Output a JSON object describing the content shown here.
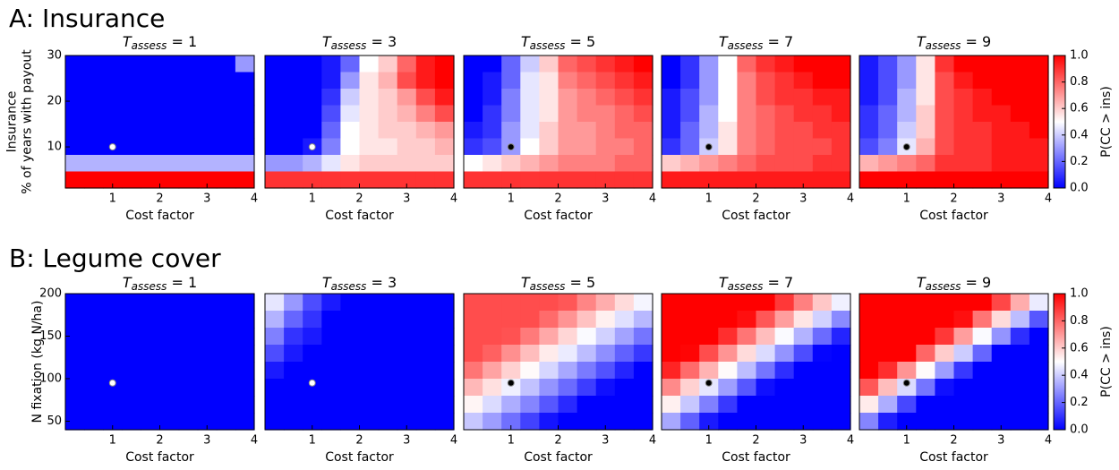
{
  "panel_labels": [
    "A: Insurance",
    "B: Legume cover"
  ],
  "colorbar": {
    "label": "P(CC > ins)",
    "lim": [
      0,
      1
    ],
    "cmap": [
      "#0000ff",
      "#ffffff",
      "#ff0000"
    ],
    "ticks": [
      {
        "value": 0,
        "label": "0.0"
      },
      {
        "value": 0.2,
        "label": "0.2"
      },
      {
        "value": 0.4,
        "label": "0.4"
      },
      {
        "value": 0.6,
        "label": "0.6"
      },
      {
        "value": 0.8,
        "label": "0.8"
      },
      {
        "value": 1,
        "label": "1.0"
      }
    ]
  },
  "chart_data": [
    {
      "type": "heatmap",
      "title": [
        "T",
        "assess",
        " = 1"
      ],
      "xlabel": "Cost factor",
      "ylabel": [
        "Insurance",
        "% of years with payout"
      ],
      "xlim": [
        0,
        4
      ],
      "xticks": [
        1,
        2,
        3,
        4
      ],
      "ylim": [
        1,
        30
      ],
      "yticks": [
        10,
        20,
        30
      ],
      "point": {
        "x": 1,
        "y": 10,
        "color": "#ffffff"
      },
      "values": [
        [
          0,
          0,
          0,
          0,
          0,
          0,
          0,
          0,
          0,
          0.3
        ],
        [
          0,
          0,
          0,
          0,
          0,
          0,
          0,
          0,
          0,
          0
        ],
        [
          0,
          0,
          0,
          0,
          0,
          0,
          0,
          0,
          0,
          0
        ],
        [
          0,
          0,
          0,
          0,
          0,
          0,
          0,
          0,
          0,
          0
        ],
        [
          0,
          0,
          0,
          0,
          0,
          0,
          0,
          0,
          0,
          0
        ],
        [
          0,
          0,
          0,
          0,
          0,
          0,
          0,
          0,
          0,
          0
        ],
        [
          0.35,
          0.35,
          0.35,
          0.35,
          0.35,
          0.35,
          0.35,
          0.35,
          0.35,
          0.35
        ],
        [
          1,
          1,
          1,
          1,
          1,
          1,
          1,
          1,
          1,
          1
        ]
      ]
    },
    {
      "type": "heatmap",
      "title": [
        "T",
        "assess",
        " = 3"
      ],
      "xlabel": "Cost factor",
      "xlim": [
        0,
        4
      ],
      "xticks": [
        1,
        2,
        3,
        4
      ],
      "ylim": [
        1,
        30
      ],
      "point": {
        "x": 1,
        "y": 10,
        "color": "#ffffff"
      },
      "values": [
        [
          0,
          0,
          0,
          0.05,
          0.2,
          0.5,
          0.6,
          0.8,
          0.95,
          1
        ],
        [
          0,
          0,
          0,
          0.05,
          0.3,
          0.55,
          0.65,
          0.85,
          0.95,
          1
        ],
        [
          0,
          0,
          0,
          0.1,
          0.4,
          0.55,
          0.6,
          0.7,
          0.85,
          0.95
        ],
        [
          0,
          0,
          0,
          0.15,
          0.45,
          0.55,
          0.6,
          0.65,
          0.75,
          0.85
        ],
        [
          0,
          0,
          0,
          0.2,
          0.5,
          0.55,
          0.6,
          0.6,
          0.65,
          0.7
        ],
        [
          0,
          0,
          0.05,
          0.25,
          0.5,
          0.55,
          0.55,
          0.6,
          0.6,
          0.65
        ],
        [
          0.3,
          0.3,
          0.35,
          0.45,
          0.55,
          0.6,
          0.6,
          0.6,
          0.6,
          0.6
        ],
        [
          0.9,
          0.9,
          0.9,
          0.9,
          0.9,
          0.9,
          0.9,
          0.9,
          0.9,
          0.9
        ]
      ]
    },
    {
      "type": "heatmap",
      "title": [
        "T",
        "assess",
        " = 5"
      ],
      "xlabel": "Cost factor",
      "xlim": [
        0,
        4
      ],
      "xticks": [
        1,
        2,
        3,
        4
      ],
      "ylim": [
        1,
        30
      ],
      "point": {
        "x": 1,
        "y": 10,
        "color": "#000000"
      },
      "values": [
        [
          0,
          0,
          0.2,
          0.4,
          0.6,
          0.8,
          0.85,
          0.9,
          0.95,
          1
        ],
        [
          0,
          0.05,
          0.2,
          0.45,
          0.55,
          0.75,
          0.8,
          0.85,
          0.9,
          0.95
        ],
        [
          0,
          0.05,
          0.25,
          0.45,
          0.55,
          0.7,
          0.75,
          0.8,
          0.85,
          0.9
        ],
        [
          0,
          0.1,
          0.25,
          0.45,
          0.55,
          0.7,
          0.75,
          0.75,
          0.8,
          0.85
        ],
        [
          0.05,
          0.1,
          0.3,
          0.45,
          0.6,
          0.7,
          0.7,
          0.75,
          0.8,
          0.8
        ],
        [
          0.1,
          0.15,
          0.3,
          0.5,
          0.6,
          0.7,
          0.7,
          0.75,
          0.75,
          0.8
        ],
        [
          0.5,
          0.55,
          0.6,
          0.65,
          0.7,
          0.75,
          0.75,
          0.75,
          0.8,
          0.8
        ],
        [
          0.9,
          0.9,
          0.9,
          0.9,
          0.9,
          0.9,
          0.9,
          0.9,
          0.9,
          0.9
        ]
      ]
    },
    {
      "type": "heatmap",
      "title": [
        "T",
        "assess",
        " = 7"
      ],
      "xlabel": "Cost factor",
      "xlim": [
        0,
        4
      ],
      "xticks": [
        1,
        2,
        3,
        4
      ],
      "ylim": [
        1,
        30
      ],
      "point": {
        "x": 1,
        "y": 10,
        "color": "#000000"
      },
      "values": [
        [
          0,
          0.1,
          0.3,
          0.5,
          0.8,
          0.9,
          0.95,
          1,
          1,
          1
        ],
        [
          0,
          0.1,
          0.3,
          0.5,
          0.75,
          0.85,
          0.9,
          0.95,
          1,
          1
        ],
        [
          0.05,
          0.15,
          0.3,
          0.5,
          0.75,
          0.85,
          0.9,
          0.9,
          0.95,
          0.95
        ],
        [
          0.05,
          0.15,
          0.35,
          0.5,
          0.75,
          0.8,
          0.85,
          0.9,
          0.9,
          0.95
        ],
        [
          0.05,
          0.2,
          0.35,
          0.55,
          0.75,
          0.8,
          0.85,
          0.85,
          0.9,
          0.9
        ],
        [
          0.1,
          0.2,
          0.4,
          0.55,
          0.75,
          0.8,
          0.85,
          0.85,
          0.85,
          0.9
        ],
        [
          0.6,
          0.65,
          0.7,
          0.75,
          0.8,
          0.85,
          0.85,
          0.85,
          0.9,
          0.9
        ],
        [
          0.95,
          0.95,
          0.95,
          0.95,
          0.95,
          0.95,
          0.95,
          0.95,
          0.95,
          0.95
        ]
      ]
    },
    {
      "type": "heatmap",
      "title": [
        "T",
        "assess",
        " = 9"
      ],
      "xlabel": "Cost factor",
      "xlim": [
        0,
        4
      ],
      "xticks": [
        1,
        2,
        3,
        4
      ],
      "ylim": [
        1,
        30
      ],
      "point": {
        "x": 1,
        "y": 10,
        "color": "#000000"
      },
      "values": [
        [
          0.05,
          0.15,
          0.3,
          0.55,
          0.9,
          1,
          1,
          1,
          1,
          1
        ],
        [
          0.05,
          0.15,
          0.3,
          0.55,
          0.85,
          0.95,
          1,
          1,
          1,
          1
        ],
        [
          0.05,
          0.15,
          0.35,
          0.55,
          0.85,
          0.9,
          0.95,
          1,
          1,
          1
        ],
        [
          0.1,
          0.2,
          0.35,
          0.6,
          0.85,
          0.9,
          0.95,
          0.95,
          1,
          1
        ],
        [
          0.1,
          0.2,
          0.4,
          0.6,
          0.85,
          0.9,
          0.9,
          0.95,
          0.95,
          1
        ],
        [
          0.15,
          0.25,
          0.45,
          0.65,
          0.85,
          0.9,
          0.9,
          0.95,
          0.95,
          0.95
        ],
        [
          0.65,
          0.7,
          0.75,
          0.8,
          0.9,
          0.9,
          0.9,
          0.95,
          0.95,
          0.95
        ],
        [
          1,
          1,
          1,
          1,
          1,
          1,
          1,
          1,
          1,
          1
        ]
      ]
    },
    {
      "type": "heatmap",
      "title": [
        "T",
        "assess",
        " = 1"
      ],
      "xlabel": "Cost factor",
      "ylabel": [
        "N fixation (kg N/ha)"
      ],
      "xlim": [
        0,
        4
      ],
      "xticks": [
        1,
        2,
        3,
        4
      ],
      "ylim": [
        40,
        200
      ],
      "yticks": [
        50,
        100,
        150,
        200
      ],
      "point": {
        "x": 1,
        "y": 95,
        "color": "#ffffff"
      },
      "values": [
        [
          0,
          0,
          0,
          0,
          0,
          0,
          0,
          0,
          0,
          0
        ],
        [
          0,
          0,
          0,
          0,
          0,
          0,
          0,
          0,
          0,
          0
        ],
        [
          0,
          0,
          0,
          0,
          0,
          0,
          0,
          0,
          0,
          0
        ],
        [
          0,
          0,
          0,
          0,
          0,
          0,
          0,
          0,
          0,
          0
        ],
        [
          0,
          0,
          0,
          0,
          0,
          0,
          0,
          0,
          0,
          0
        ],
        [
          0,
          0,
          0,
          0,
          0,
          0,
          0,
          0,
          0,
          0
        ],
        [
          0,
          0,
          0,
          0,
          0,
          0,
          0,
          0,
          0,
          0
        ],
        [
          0,
          0,
          0,
          0,
          0,
          0,
          0,
          0,
          0,
          0
        ]
      ]
    },
    {
      "type": "heatmap",
      "title": [
        "T",
        "assess",
        " = 3"
      ],
      "xlabel": "Cost factor",
      "xlim": [
        0,
        4
      ],
      "xticks": [
        1,
        2,
        3,
        4
      ],
      "ylim": [
        40,
        200
      ],
      "point": {
        "x": 1,
        "y": 95,
        "color": "#ffffff"
      },
      "values": [
        [
          0.45,
          0.3,
          0.15,
          0.05,
          0,
          0,
          0,
          0,
          0,
          0
        ],
        [
          0.35,
          0.2,
          0.1,
          0,
          0,
          0,
          0,
          0,
          0,
          0
        ],
        [
          0.25,
          0.1,
          0.05,
          0,
          0,
          0,
          0,
          0,
          0,
          0
        ],
        [
          0.15,
          0.05,
          0,
          0,
          0,
          0,
          0,
          0,
          0,
          0
        ],
        [
          0.05,
          0,
          0,
          0,
          0,
          0,
          0,
          0,
          0,
          0
        ],
        [
          0,
          0,
          0,
          0,
          0,
          0,
          0,
          0,
          0,
          0
        ],
        [
          0,
          0,
          0,
          0,
          0,
          0,
          0,
          0,
          0,
          0
        ],
        [
          0,
          0,
          0,
          0,
          0,
          0,
          0,
          0,
          0,
          0
        ]
      ]
    },
    {
      "type": "heatmap",
      "title": [
        "T",
        "assess",
        " = 5"
      ],
      "xlabel": "Cost factor",
      "xlim": [
        0,
        4
      ],
      "xticks": [
        1,
        2,
        3,
        4
      ],
      "ylim": [
        40,
        200
      ],
      "point": {
        "x": 1,
        "y": 95,
        "color": "#000000"
      },
      "values": [
        [
          0.85,
          0.85,
          0.85,
          0.85,
          0.85,
          0.83,
          0.74,
          0.66,
          0.57,
          0.48
        ],
        [
          0.85,
          0.85,
          0.85,
          0.85,
          0.79,
          0.71,
          0.62,
          0.53,
          0.44,
          0.36
        ],
        [
          0.85,
          0.85,
          0.84,
          0.76,
          0.67,
          0.58,
          0.49,
          0.41,
          0.32,
          0.23
        ],
        [
          0.85,
          0.81,
          0.72,
          0.63,
          0.54,
          0.46,
          0.37,
          0.28,
          0.19,
          0.11
        ],
        [
          0.77,
          0.68,
          0.59,
          0.51,
          0.42,
          0.33,
          0.24,
          0.16,
          0.07,
          0
        ],
        [
          0.64,
          0.56,
          0.47,
          0.38,
          0.29,
          0.21,
          0.12,
          0.03,
          0,
          0
        ],
        [
          0.52,
          0.43,
          0.34,
          0.26,
          0.17,
          0.08,
          0,
          0,
          0,
          0
        ],
        [
          0.39,
          0.31,
          0.22,
          0.13,
          0.04,
          0,
          0,
          0,
          0,
          0
        ]
      ]
    },
    {
      "type": "heatmap",
      "title": [
        "T",
        "assess",
        " = 7"
      ],
      "xlabel": "Cost factor",
      "xlim": [
        0,
        4
      ],
      "xticks": [
        1,
        2,
        3,
        4
      ],
      "ylim": [
        40,
        200
      ],
      "point": {
        "x": 1,
        "y": 95,
        "color": "#000000"
      },
      "values": [
        [
          1,
          1,
          1,
          1,
          1,
          1,
          0.89,
          0.75,
          0.61,
          0.47
        ],
        [
          1,
          1,
          1,
          1,
          0.97,
          0.83,
          0.69,
          0.55,
          0.41,
          0.27
        ],
        [
          1,
          1,
          1,
          0.91,
          0.77,
          0.63,
          0.49,
          0.35,
          0.21,
          0.07
        ],
        [
          1,
          0.99,
          0.85,
          0.71,
          0.57,
          0.43,
          0.29,
          0.15,
          0.01,
          0
        ],
        [
          0.93,
          0.79,
          0.65,
          0.51,
          0.37,
          0.23,
          0.09,
          0,
          0,
          0
        ],
        [
          0.73,
          0.59,
          0.45,
          0.31,
          0.17,
          0.03,
          0,
          0,
          0,
          0
        ],
        [
          0.53,
          0.39,
          0.25,
          0.11,
          0,
          0,
          0,
          0,
          0,
          0
        ],
        [
          0.33,
          0.19,
          0.05,
          0,
          0,
          0,
          0,
          0,
          0,
          0
        ]
      ]
    },
    {
      "type": "heatmap",
      "title": [
        "T",
        "assess",
        " = 9"
      ],
      "xlabel": "Cost factor",
      "xlim": [
        0,
        4
      ],
      "xticks": [
        1,
        2,
        3,
        4
      ],
      "ylim": [
        40,
        200
      ],
      "point": {
        "x": 1,
        "y": 95,
        "color": "#000000"
      },
      "values": [
        [
          1,
          1,
          1,
          1,
          1,
          1,
          1,
          0.86,
          0.66,
          0.46
        ],
        [
          1,
          1,
          1,
          1,
          1,
          0.97,
          0.77,
          0.57,
          0.37,
          0.17
        ],
        [
          1,
          1,
          1,
          1,
          0.89,
          0.69,
          0.49,
          0.29,
          0.09,
          0
        ],
        [
          1,
          1,
          1,
          0.8,
          0.6,
          0.4,
          0.2,
          0,
          0,
          0
        ],
        [
          1,
          0.91,
          0.71,
          0.51,
          0.31,
          0.11,
          0,
          0,
          0,
          0
        ],
        [
          0.83,
          0.63,
          0.43,
          0.23,
          0.03,
          0,
          0,
          0,
          0,
          0
        ],
        [
          0.54,
          0.34,
          0.14,
          0,
          0,
          0,
          0,
          0,
          0,
          0
        ],
        [
          0.26,
          0.06,
          0,
          0,
          0,
          0,
          0,
          0,
          0,
          0
        ]
      ]
    }
  ]
}
